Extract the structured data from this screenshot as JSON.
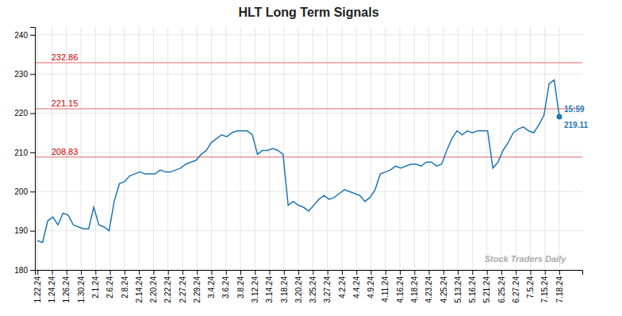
{
  "chart_data": {
    "type": "line",
    "title": "HLT Long Term Signals",
    "values": [
      187.5,
      187.0,
      192.5,
      193.5,
      191.5,
      194.5,
      194.0,
      191.5,
      191.0,
      190.5,
      190.5,
      196.0,
      191.5,
      191.0,
      190.0,
      197.5,
      202.0,
      202.5,
      204.0,
      204.5,
      205.0,
      204.5,
      204.5,
      204.5,
      205.5,
      205.0,
      205.0,
      205.5,
      206.0,
      207.0,
      207.5,
      208.0,
      209.5,
      210.5,
      212.5,
      213.5,
      214.5,
      214.0,
      215.0,
      215.5,
      215.5,
      215.5,
      214.5,
      209.5,
      210.5,
      210.5,
      211.0,
      210.5,
      209.5,
      196.5,
      197.5,
      196.5,
      196.0,
      195.0,
      196.5,
      198.0,
      199.0,
      198.0,
      198.5,
      199.5,
      200.5,
      200.0,
      199.5,
      199.0,
      197.5,
      198.5,
      200.5,
      204.5,
      205.0,
      205.5,
      206.5,
      206.0,
      206.5,
      207.0,
      207.0,
      206.5,
      207.5,
      207.5,
      206.5,
      207.0,
      210.5,
      213.5,
      215.5,
      214.5,
      215.5,
      215.0,
      215.5,
      215.5,
      215.5,
      206.0,
      207.5,
      210.5,
      212.5,
      215.0,
      216.0,
      216.5,
      215.5,
      215.0,
      217.0,
      219.5,
      227.5,
      228.5,
      219.11
    ],
    "xlim": [
      -0.5,
      106.5
    ],
    "xticks": [
      {
        "value": 0,
        "label": "1.22.24"
      },
      {
        "value": 2.8333,
        "label": "1.24.24"
      },
      {
        "value": 5.6667,
        "label": "1.26.24"
      },
      {
        "value": 8.5,
        "label": "1.30.24"
      },
      {
        "value": 11.3333,
        "label": "2.1.24"
      },
      {
        "value": 14.1667,
        "label": "2.6.24"
      },
      {
        "value": 17,
        "label": "2.8.24"
      },
      {
        "value": 19.8333,
        "label": "2.14.24"
      },
      {
        "value": 22.6667,
        "label": "2.20.24"
      },
      {
        "value": 25.5,
        "label": "2.22.24"
      },
      {
        "value": 28.3333,
        "label": "2.27.24"
      },
      {
        "value": 31.1667,
        "label": "2.29.24"
      },
      {
        "value": 34,
        "label": "3.4.24"
      },
      {
        "value": 36.8333,
        "label": "3.6.24"
      },
      {
        "value": 39.6667,
        "label": "3.8.24"
      },
      {
        "value": 42.5,
        "label": "3.12.24"
      },
      {
        "value": 45.3333,
        "label": "3.14.24"
      },
      {
        "value": 48.1667,
        "label": "3.18.24"
      },
      {
        "value": 51,
        "label": "3.20.24"
      },
      {
        "value": 53.8333,
        "label": "3.25.24"
      },
      {
        "value": 56.6667,
        "label": "3.27.24"
      },
      {
        "value": 59.5,
        "label": "4.2.24"
      },
      {
        "value": 62.3333,
        "label": "4.4.24"
      },
      {
        "value": 65.1667,
        "label": "4.9.24"
      },
      {
        "value": 68,
        "label": "4.11.24"
      },
      {
        "value": 70.8333,
        "label": "4.16.24"
      },
      {
        "value": 73.6667,
        "label": "4.18.24"
      },
      {
        "value": 76.5,
        "label": "4.23.24"
      },
      {
        "value": 79.3333,
        "label": "4.25.24"
      },
      {
        "value": 82.1667,
        "label": "5.13.24"
      },
      {
        "value": 85,
        "label": "5.16.24"
      },
      {
        "value": 87.8333,
        "label": "5.21.24"
      },
      {
        "value": 90.6667,
        "label": "6.25.24"
      },
      {
        "value": 93.5,
        "label": "6.27.24"
      },
      {
        "value": 96.3333,
        "label": "7.5.24"
      },
      {
        "value": 99.1667,
        "label": "7.15.24"
      },
      {
        "value": 102,
        "label": "7.18.24"
      }
    ],
    "ylim": [
      180,
      242
    ],
    "yticks": [
      180,
      190,
      200,
      210,
      220,
      230,
      240
    ],
    "grid": true,
    "annotations": [
      {
        "type": "hline",
        "y": 208.83,
        "text": "208.83",
        "color": "#cc0000"
      },
      {
        "type": "hline",
        "y": 221.15,
        "text": "221.15",
        "color": "#cc0000"
      },
      {
        "type": "hline",
        "y": 232.86,
        "text": "232.86",
        "color": "#cc0000"
      },
      {
        "type": "point",
        "x": 102,
        "y": 219.11,
        "lines": [
          "15:59",
          "219.11"
        ]
      },
      {
        "type": "watermark",
        "text": "Stock Traders Daily"
      }
    ]
  }
}
